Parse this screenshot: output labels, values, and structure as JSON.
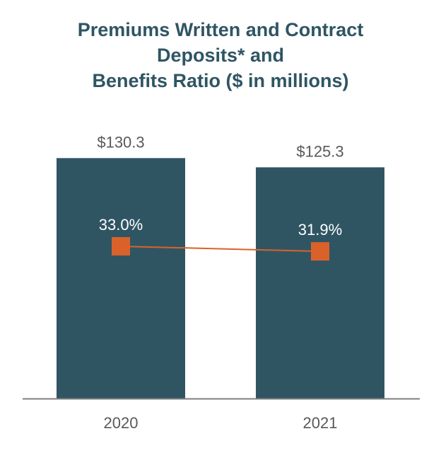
{
  "chart_data": {
    "type": "bar",
    "title_lines": [
      "Premiums Written and Contract",
      "Deposits* and",
      "Benefits Ratio ($ in millions)"
    ],
    "categories": [
      "2020",
      "2021"
    ],
    "series": [
      {
        "name": "Premiums Written and Contract Deposits",
        "type": "bar",
        "values": [
          130.3,
          125.3
        ],
        "labels": [
          "$130.3",
          "$125.3"
        ]
      },
      {
        "name": "Benefits Ratio",
        "type": "line",
        "values": [
          33.0,
          31.9
        ],
        "labels": [
          "33.0%",
          "31.9%"
        ]
      }
    ],
    "ylim": [
      0,
      150
    ],
    "ratio_ylim": [
      0,
      60
    ],
    "colors": {
      "bar": "#2f5563",
      "line": "#d9622b",
      "title": "#2f5563",
      "axis": "#595959",
      "value_label": "#595959",
      "ratio_label": "#ffffff"
    }
  }
}
